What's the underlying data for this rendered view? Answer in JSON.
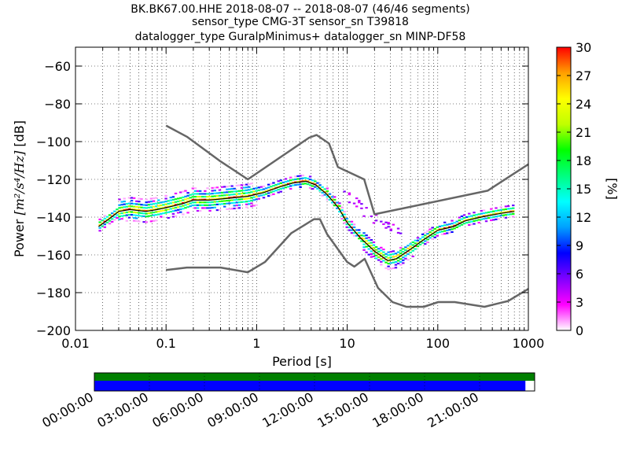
{
  "title": {
    "line1": "BK.BK67.00.HHE   2018-08-07 -- 2018-08-07  (46/46 segments)",
    "line2": "sensor_type CMG-3T sensor_sn T39818",
    "line3": "datalogger_type GuralpMinimus+ datalogger_sn MINP-DF58"
  },
  "chart_data": {
    "type": "heatmap",
    "xlabel": "Period [s]",
    "ylabel_prefix": "Power ",
    "ylabel_unit_italic": "[m²/s⁴/Hz]",
    "ylabel_suffix": " [dB]",
    "x_scale": "log",
    "xlim": [
      0.01,
      1000
    ],
    "ylim": [
      -200,
      -50
    ],
    "x_ticks": [
      {
        "v": 0.01,
        "label": "0.01"
      },
      {
        "v": 0.1,
        "label": "0.1"
      },
      {
        "v": 1,
        "label": "1"
      },
      {
        "v": 10,
        "label": "10"
      },
      {
        "v": 100,
        "label": "100"
      },
      {
        "v": 1000,
        "label": "1000"
      }
    ],
    "y_ticks": [
      {
        "v": -60,
        "label": "−60"
      },
      {
        "v": -80,
        "label": "−80"
      },
      {
        "v": -100,
        "label": "−100"
      },
      {
        "v": -120,
        "label": "−120"
      },
      {
        "v": -140,
        "label": "−140"
      },
      {
        "v": -160,
        "label": "−160"
      },
      {
        "v": -180,
        "label": "−180"
      },
      {
        "v": -200,
        "label": "−200"
      }
    ],
    "grid": true,
    "colorbar": {
      "label": "[%]",
      "min": 0,
      "max": 30,
      "ticks": [
        {
          "v": 0,
          "label": "0"
        },
        {
          "v": 3,
          "label": "3"
        },
        {
          "v": 6,
          "label": "6"
        },
        {
          "v": 9,
          "label": "9"
        },
        {
          "v": 12,
          "label": "12"
        },
        {
          "v": 15,
          "label": "15"
        },
        {
          "v": 18,
          "label": "18"
        },
        {
          "v": 21,
          "label": "21"
        },
        {
          "v": 24,
          "label": "24"
        },
        {
          "v": 27,
          "label": "27"
        },
        {
          "v": 30,
          "label": "30"
        }
      ],
      "colors": [
        "#ffffff",
        "#ff00ff",
        "#8000ff",
        "#0000ff",
        "#00a0ff",
        "#00ffff",
        "#00ff80",
        "#00ff00",
        "#c0ff00",
        "#ffff00",
        "#ffa000",
        "#ff0000"
      ]
    },
    "nhnm": [
      [
        0.1,
        -91.5
      ],
      [
        0.17,
        -97.4
      ],
      [
        0.4,
        -110.5
      ],
      [
        0.8,
        -120
      ],
      [
        3.8,
        -97.9
      ],
      [
        4.6,
        -96.5
      ],
      [
        6.3,
        -101
      ],
      [
        7.9,
        -113.5
      ],
      [
        15.4,
        -120
      ],
      [
        20,
        -138.5
      ],
      [
        354.8,
        -126
      ],
      [
        1000,
        -112
      ]
    ],
    "nlnm": [
      [
        0.1,
        -168
      ],
      [
        0.17,
        -166.7
      ],
      [
        0.4,
        -166.7
      ],
      [
        0.8,
        -169.2
      ],
      [
        1.24,
        -163.7
      ],
      [
        2.4,
        -148.6
      ],
      [
        4.3,
        -141.1
      ],
      [
        5,
        -141.1
      ],
      [
        6,
        -149
      ],
      [
        10,
        -163.8
      ],
      [
        12,
        -166.2
      ],
      [
        15.6,
        -162.1
      ],
      [
        21.9,
        -177.5
      ],
      [
        31.6,
        -185
      ],
      [
        45,
        -187.5
      ],
      [
        70,
        -187.5
      ],
      [
        101,
        -185
      ],
      [
        154,
        -185
      ],
      [
        328,
        -187.5
      ],
      [
        600,
        -184.4
      ],
      [
        1000,
        -178
      ]
    ],
    "mean_psd": [
      [
        0.018,
        -145
      ],
      [
        0.025,
        -140
      ],
      [
        0.03,
        -137
      ],
      [
        0.04,
        -136
      ],
      [
        0.06,
        -137
      ],
      [
        0.08,
        -136
      ],
      [
        0.1,
        -135
      ],
      [
        0.15,
        -133
      ],
      [
        0.2,
        -131
      ],
      [
        0.3,
        -131
      ],
      [
        0.5,
        -130
      ],
      [
        0.8,
        -129
      ],
      [
        1.2,
        -127
      ],
      [
        1.8,
        -124
      ],
      [
        2.5,
        -122
      ],
      [
        3.5,
        -121
      ],
      [
        4.5,
        -123
      ],
      [
        6,
        -128
      ],
      [
        8,
        -135
      ],
      [
        10,
        -143
      ],
      [
        14,
        -151
      ],
      [
        20,
        -158
      ],
      [
        28,
        -163
      ],
      [
        35,
        -162
      ],
      [
        50,
        -157
      ],
      [
        70,
        -152
      ],
      [
        100,
        -147
      ],
      [
        150,
        -145
      ],
      [
        200,
        -142
      ],
      [
        300,
        -140
      ],
      [
        500,
        -138
      ],
      [
        700,
        -137
      ]
    ],
    "upper_branch": [
      [
        9,
        -128
      ],
      [
        12,
        -132
      ],
      [
        16,
        -138
      ],
      [
        22,
        -142
      ],
      [
        30,
        -145
      ],
      [
        40,
        -147
      ]
    ],
    "time_axis": {
      "labels": [
        "00:00:00",
        "03:00:00",
        "06:00:00",
        "09:00:00",
        "12:00:00",
        "15:00:00",
        "18:00:00",
        "21:00:00"
      ],
      "green_fraction": 1.0,
      "blue_fraction": 0.979,
      "green_color": "#007f00",
      "blue_color": "#0000ff"
    }
  }
}
